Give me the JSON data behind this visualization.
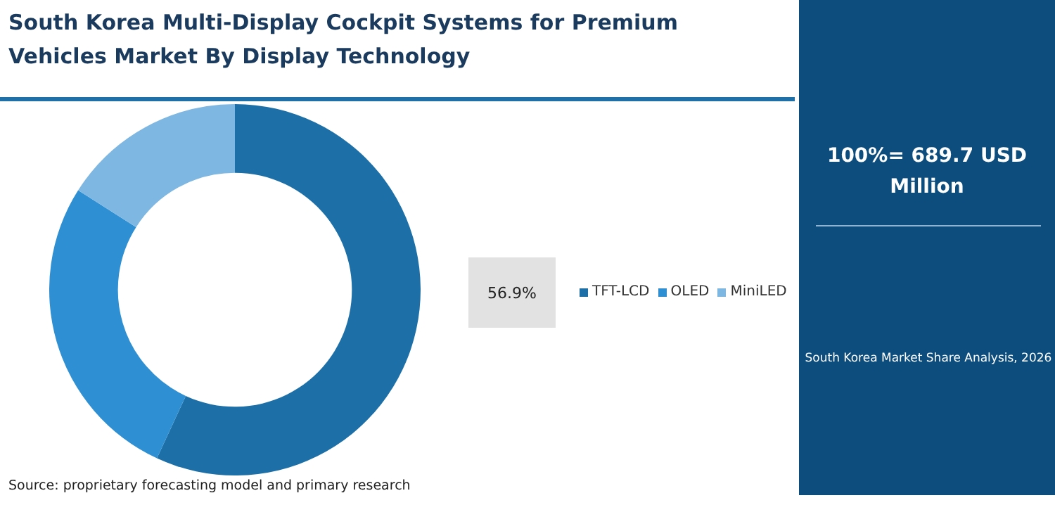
{
  "chart_data": {
    "type": "donut",
    "title": "South Korea Multi-Display Cockpit Systems for Premium Vehicles Market By Display Technology",
    "categories": [
      "TFT-LCD",
      "OLED",
      "MiniLED"
    ],
    "values": [
      56.9,
      27.1,
      16.0
    ],
    "colors": [
      "#1d6fa8",
      "#2e8fd3",
      "#7db7e2"
    ],
    "value_labels": [
      "56.9%",
      null,
      null
    ],
    "legend": "right",
    "annotations": [
      "100%= 689.7 USD Million",
      "South Korea Market Share Analysis, 2026",
      "Source: proprietary forecasting model and primary research"
    ]
  }
}
